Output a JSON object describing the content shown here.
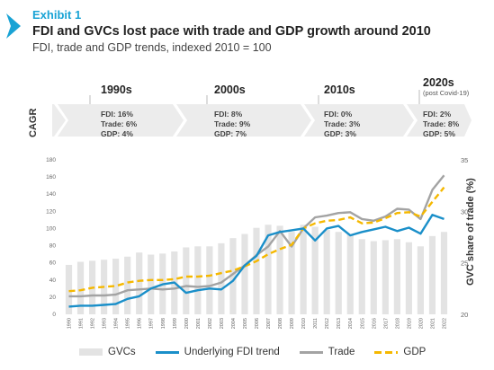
{
  "header": {
    "exhibit": "Exhibit 1",
    "title": "FDI and GVCs lost pace with trade and GDP growth around 2010",
    "subtitle": "FDI, trade and GDP trends, indexed 2010 = 100"
  },
  "cagr": {
    "label": "CAGR",
    "periods": [
      {
        "decade": "1990s",
        "note": "",
        "fdi": "FDI: 16%",
        "trade": "Trade: 6%",
        "gdp": "GDP: 4%"
      },
      {
        "decade": "2000s",
        "note": "",
        "fdi": "FDI: 8%",
        "trade": "Trade: 9%",
        "gdp": "GDP: 7%"
      },
      {
        "decade": "2010s",
        "note": "",
        "fdi": "FDI: 0%",
        "trade": "Trade: 3%",
        "gdp": "GDP: 3%"
      },
      {
        "decade": "2020s",
        "note": "(post Covid-19)",
        "fdi": "FDI: 2%",
        "trade": "Trade: 8%",
        "gdp": "GDP: 5%"
      }
    ]
  },
  "colors": {
    "gvc": "#e3e3e3",
    "fdi": "#1a8fc9",
    "trade": "#a3a3a3",
    "gdp": "#f5b800",
    "band": "#ececec",
    "accent": "#19a3d5"
  },
  "chart_data": {
    "type": "bar",
    "title": "FDI and GVCs lost pace with trade and GDP growth around 2010",
    "subtitle": "FDI, trade and GDP trends, indexed 2010 = 100",
    "categories": [
      "1990",
      "1991",
      "1992",
      "1993",
      "1994",
      "1995",
      "1996",
      "1997",
      "1998",
      "1999",
      "2000",
      "2001",
      "2002",
      "2003",
      "2004",
      "2005",
      "2006",
      "2007",
      "2008",
      "2009",
      "2010",
      "2011",
      "2012",
      "2013",
      "2014",
      "2015",
      "2016",
      "2017",
      "2018",
      "2019",
      "2020",
      "2021",
      "2022"
    ],
    "ylim_left": [
      0,
      180
    ],
    "yticks_left": [
      0,
      20,
      40,
      60,
      80,
      100,
      120,
      140,
      160,
      180
    ],
    "ylim_right": [
      20,
      35
    ],
    "yticks_right": [
      20,
      25,
      30,
      35
    ],
    "ylabel_right": "GVC share of trade (%)",
    "grid": false,
    "legend_position": "bottom",
    "series": [
      {
        "name": "GVCs",
        "type": "bar",
        "axis": "right",
        "values": [
          24.8,
          25.1,
          25.2,
          25.3,
          25.4,
          25.6,
          26.0,
          25.8,
          25.9,
          26.1,
          26.5,
          26.6,
          26.6,
          26.9,
          27.4,
          27.8,
          28.4,
          28.7,
          28.6,
          28.0,
          28.7,
          28.5,
          28.2,
          28.0,
          27.8,
          27.3,
          27.1,
          27.2,
          27.3,
          27.0,
          26.6,
          27.6,
          28.0
        ]
      },
      {
        "name": "Underlying FDI trend",
        "type": "line",
        "axis": "left",
        "values": [
          9,
          10,
          10,
          11,
          12,
          18,
          21,
          30,
          35,
          37,
          25,
          28,
          30,
          29,
          39,
          57,
          68,
          92,
          96,
          98,
          100,
          86,
          100,
          103,
          92,
          96,
          99,
          102,
          97,
          101,
          94,
          116,
          111
        ]
      },
      {
        "name": "Trade",
        "type": "line",
        "axis": "left",
        "values": [
          21,
          21,
          22,
          22,
          23,
          28,
          29,
          30,
          29,
          30,
          33,
          32,
          33,
          37,
          47,
          57,
          69,
          79,
          97,
          79,
          100,
          113,
          115,
          118,
          119,
          111,
          109,
          114,
          123,
          122,
          111,
          145,
          162
        ]
      },
      {
        "name": "GDP",
        "type": "line",
        "axis": "left",
        "values": [
          27,
          28,
          31,
          32,
          33,
          37,
          39,
          40,
          40,
          41,
          44,
          44,
          45,
          48,
          51,
          56,
          62,
          70,
          76,
          81,
          100,
          106,
          109,
          110,
          113,
          106,
          107,
          112,
          118,
          119,
          114,
          131,
          148
        ]
      }
    ]
  }
}
